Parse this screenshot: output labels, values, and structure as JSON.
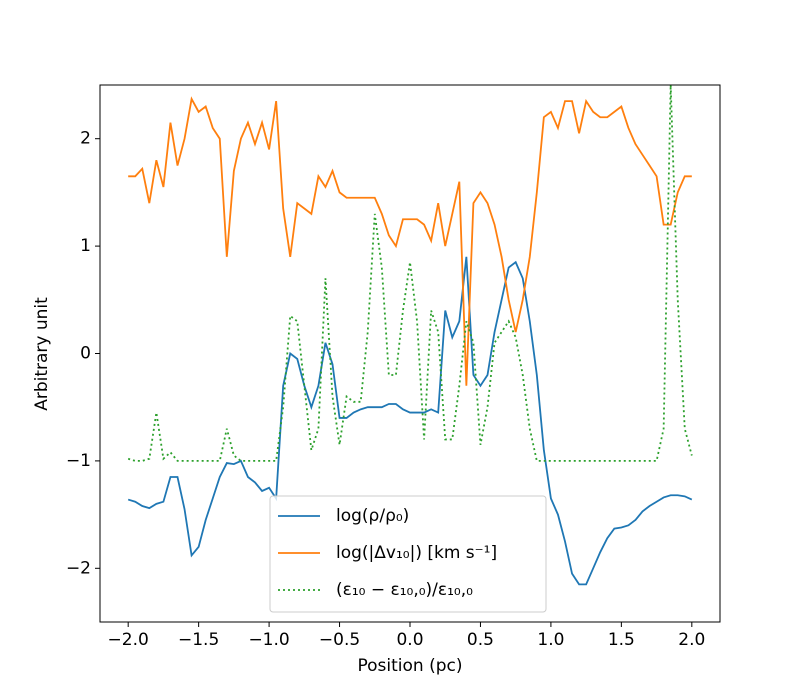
{
  "chart_data": {
    "type": "line",
    "xlabel": "Position (pc)",
    "ylabel": "Arbitrary unit",
    "xlim": [
      -2.2,
      2.2
    ],
    "ylim": [
      -2.5,
      2.5
    ],
    "xticks": [
      {
        "value": -2,
        "label": "−2.0"
      },
      {
        "value": -1.5,
        "label": "−1.5"
      },
      {
        "value": -1,
        "label": "−1.0"
      },
      {
        "value": -0.5,
        "label": "−0.5"
      },
      {
        "value": 0,
        "label": "0.0"
      },
      {
        "value": 0.5,
        "label": "0.5"
      },
      {
        "value": 1,
        "label": "1.0"
      },
      {
        "value": 1.5,
        "label": "1.5"
      },
      {
        "value": 2,
        "label": "2.0"
      }
    ],
    "yticks": [
      {
        "value": -2,
        "label": "−2"
      },
      {
        "value": -1,
        "label": "−1"
      },
      0,
      1,
      2
    ],
    "grid": false,
    "legend": "lower center",
    "x": [
      -2,
      -1.95,
      -1.9,
      -1.85,
      -1.8,
      -1.75,
      -1.7,
      -1.65,
      -1.6,
      -1.55,
      -1.5,
      -1.45,
      -1.4,
      -1.35,
      -1.3,
      -1.25,
      -1.2,
      -1.15,
      -1.1,
      -1.05,
      -1,
      -0.95,
      -0.9,
      -0.85,
      -0.8,
      -0.75,
      -0.7,
      -0.65,
      -0.6,
      -0.55,
      -0.5,
      -0.45,
      -0.4,
      -0.35,
      -0.3,
      -0.25,
      -0.2,
      -0.15,
      -0.1,
      -0.05,
      0,
      0.05,
      0.1,
      0.15,
      0.2,
      0.25,
      0.3,
      0.35,
      0.4,
      0.45,
      0.5,
      0.55,
      0.6,
      0.65,
      0.7,
      0.75,
      0.8,
      0.85,
      0.9,
      0.95,
      1,
      1.05,
      1.1,
      1.15,
      1.2,
      1.25,
      1.3,
      1.35,
      1.4,
      1.45,
      1.5,
      1.55,
      1.6,
      1.65,
      1.7,
      1.75,
      1.8,
      1.85,
      1.9,
      1.95,
      2
    ],
    "series": [
      {
        "name": "log(ρ/ρ₀)",
        "color": "#1f77b4",
        "style": "solid",
        "values": [
          -1.36,
          -1.38,
          -1.42,
          -1.44,
          -1.4,
          -1.38,
          -1.15,
          -1.15,
          -1.45,
          -1.88,
          -1.8,
          -1.55,
          -1.35,
          -1.15,
          -1.02,
          -1.03,
          -1.0,
          -1.15,
          -1.2,
          -1.28,
          -1.25,
          -1.35,
          -0.3,
          0,
          -0.05,
          -0.3,
          -0.5,
          -0.3,
          0.1,
          -0.1,
          -0.6,
          -0.6,
          -0.55,
          -0.52,
          -0.5,
          -0.5,
          -0.5,
          -0.47,
          -0.47,
          -0.52,
          -0.55,
          -0.55,
          -0.55,
          -0.52,
          -0.55,
          0.4,
          0.15,
          0.3,
          0.9,
          -0.2,
          -0.3,
          -0.2,
          0.2,
          0.5,
          0.8,
          0.85,
          0.7,
          0.3,
          -0.2,
          -0.9,
          -1.35,
          -1.5,
          -1.75,
          -2.05,
          -2.15,
          -2.15,
          -2.0,
          -1.85,
          -1.72,
          -1.63,
          -1.62,
          -1.6,
          -1.55,
          -1.47,
          -1.42,
          -1.38,
          -1.34,
          -1.32,
          -1.32,
          -1.33,
          -1.36
        ]
      },
      {
        "name": "log(|Δv₁₀|) [km s⁻¹]",
        "color": "#ff7f0e",
        "style": "solid",
        "values": [
          1.65,
          1.65,
          1.72,
          1.4,
          1.8,
          1.55,
          2.15,
          1.75,
          2.0,
          2.37,
          2.25,
          2.3,
          2.1,
          2.0,
          0.9,
          1.7,
          2.0,
          2.15,
          1.95,
          2.15,
          1.9,
          2.35,
          1.35,
          0.9,
          1.4,
          1.35,
          1.3,
          1.65,
          1.55,
          1.7,
          1.5,
          1.45,
          1.45,
          1.45,
          1.45,
          1.45,
          1.3,
          1.1,
          1.0,
          1.25,
          1.25,
          1.25,
          1.2,
          1.05,
          1.4,
          1.0,
          1.3,
          1.6,
          -0.3,
          1.4,
          1.5,
          1.4,
          1.2,
          0.9,
          0.5,
          0.2,
          0.5,
          0.9,
          1.5,
          2.2,
          2.25,
          2.1,
          2.35,
          2.35,
          2.05,
          2.35,
          2.25,
          2.2,
          2.2,
          2.25,
          2.3,
          2.1,
          1.95,
          1.85,
          1.75,
          1.65,
          1.2,
          1.2,
          1.5,
          1.65,
          1.65
        ]
      },
      {
        "name": "(ε₁₀ − ε₁₀,₀)/ε₁₀,₀",
        "color": "#2ca02c",
        "style": "dotted",
        "values": [
          -0.98,
          -1.0,
          -1.0,
          -0.98,
          -0.55,
          -0.98,
          -0.92,
          -1.0,
          -1.0,
          -1.0,
          -1.0,
          -1.0,
          -1.0,
          -1.0,
          -0.7,
          -0.95,
          -1.0,
          -1.0,
          -1.0,
          -1.0,
          -1.0,
          -1.0,
          -0.5,
          0.35,
          0.3,
          -0.3,
          -0.9,
          -0.7,
          0.7,
          -0.4,
          -0.85,
          -0.4,
          -0.45,
          -0.45,
          0.2,
          1.3,
          0.8,
          -0.2,
          -0.2,
          0.4,
          0.85,
          0.3,
          -0.8,
          0.4,
          0.2,
          -0.8,
          -0.8,
          -0.3,
          0.3,
          0.1,
          -0.85,
          -0.5,
          0.1,
          0.2,
          0.3,
          0.15,
          -0.2,
          -0.7,
          -1.0,
          -1.0,
          -1.0,
          -1.0,
          -1.0,
          -1.0,
          -1.0,
          -1.0,
          -1.0,
          -1.0,
          -1.0,
          -1.0,
          -1.0,
          -1.0,
          -1.0,
          -1.0,
          -1.0,
          -1.0,
          -0.7,
          2.5,
          0.5,
          -0.7,
          -0.95
        ]
      }
    ]
  }
}
